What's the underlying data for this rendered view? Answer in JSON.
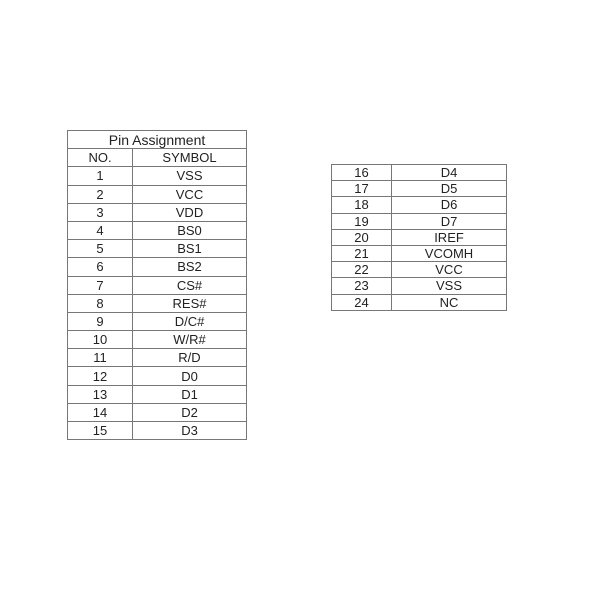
{
  "table1": {
    "title": "Pin Assignment",
    "headers": [
      "NO.",
      "SYMBOL"
    ],
    "rows": [
      [
        "1",
        "VSS"
      ],
      [
        "2",
        "VCC"
      ],
      [
        "3",
        "VDD"
      ],
      [
        "4",
        "BS0"
      ],
      [
        "5",
        "BS1"
      ],
      [
        "6",
        "BS2"
      ],
      [
        "7",
        "CS#"
      ],
      [
        "8",
        "RES#"
      ],
      [
        "9",
        "D/C#"
      ],
      [
        "10",
        "W/R#"
      ],
      [
        "11",
        "R/D"
      ],
      [
        "12",
        "D0"
      ],
      [
        "13",
        "D1"
      ],
      [
        "14",
        "D2"
      ],
      [
        "15",
        "D3"
      ]
    ]
  },
  "table2": {
    "rows": [
      [
        "16",
        "D4"
      ],
      [
        "17",
        "D5"
      ],
      [
        "18",
        "D6"
      ],
      [
        "19",
        "D7"
      ],
      [
        "20",
        "IREF"
      ],
      [
        "21",
        "VCOMH"
      ],
      [
        "22",
        "VCC"
      ],
      [
        "23",
        "VSS"
      ],
      [
        "24",
        "NC"
      ]
    ]
  }
}
